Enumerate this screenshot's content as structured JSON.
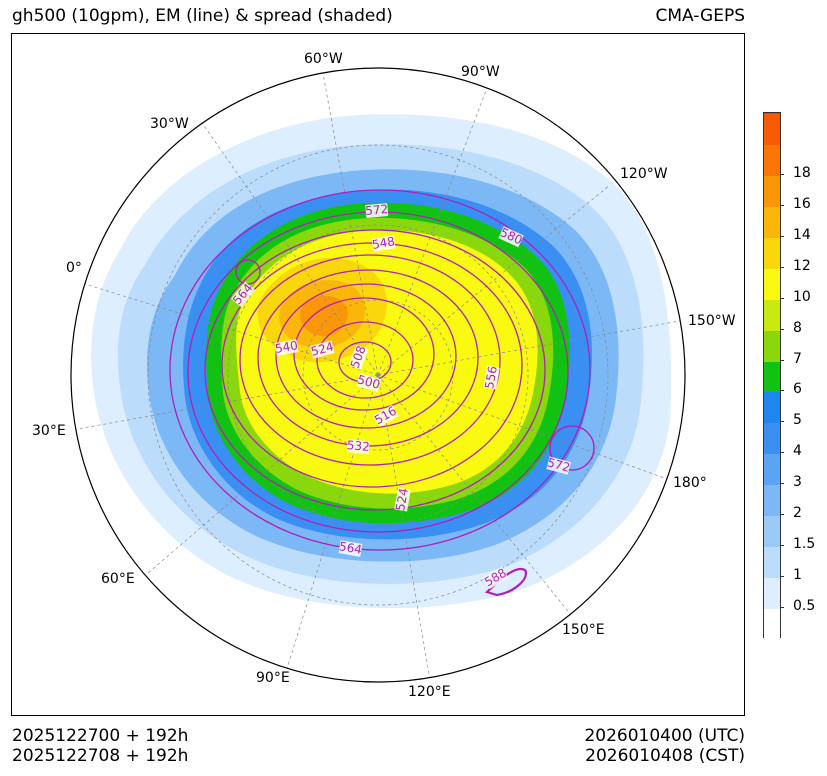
{
  "title_left": "gh500 (10gpm), EM (line) & spread (shaded)",
  "title_right": "CMA-GEPS",
  "footer": {
    "init_utc": "2025122700 + 192h",
    "init_cst": "2025122708 + 192h",
    "valid_utc": "2026010400 (UTC)",
    "valid_cst": "2026010408 (CST)"
  },
  "longitude_labels": [
    "60°W",
    "90°W",
    "30°W",
    "120°W",
    "0°",
    "150°W",
    "30°E",
    "180°",
    "60°E",
    "150°E",
    "90°E",
    "120°E"
  ],
  "chart_data": {
    "type": "contour-map",
    "projection": "north-polar-stereographic",
    "variable": "500 hPa geopotential height (10gpm)",
    "ensemble_mean_contour_labels": [
      572,
      548,
      580,
      564,
      540,
      524,
      508,
      500,
      556,
      516,
      532,
      572,
      524,
      564,
      588
    ],
    "contour_interval": 4,
    "spread_levels": [
      {
        "value": 0.5,
        "color": "#ddeeff"
      },
      {
        "value": 1,
        "color": "#bcdcfb"
      },
      {
        "value": 1.5,
        "color": "#9ccaf7"
      },
      {
        "value": 2,
        "color": "#7cb8f5"
      },
      {
        "value": 3,
        "color": "#5aa4f3"
      },
      {
        "value": 4,
        "color": "#3a8ff2"
      },
      {
        "value": 5,
        "color": "#1e88f0"
      },
      {
        "value": 6,
        "color": "#12c212"
      },
      {
        "value": 7,
        "color": "#8ad70c"
      },
      {
        "value": 8,
        "color": "#c8ea10"
      },
      {
        "value": 10,
        "color": "#fafa10"
      },
      {
        "value": 12,
        "color": "#fad70a"
      },
      {
        "value": 14,
        "color": "#fbb709"
      },
      {
        "value": 16,
        "color": "#fb9607"
      },
      {
        "value": 18,
        "color": "#fb7606"
      },
      {
        "value": 20,
        "color": "#fb5a04"
      }
    ],
    "colorbar_labels": [
      "0.5",
      "1",
      "1.5",
      "2",
      "3",
      "4",
      "5",
      "6",
      "7",
      "8",
      "10",
      "12",
      "14",
      "16",
      "18"
    ]
  }
}
